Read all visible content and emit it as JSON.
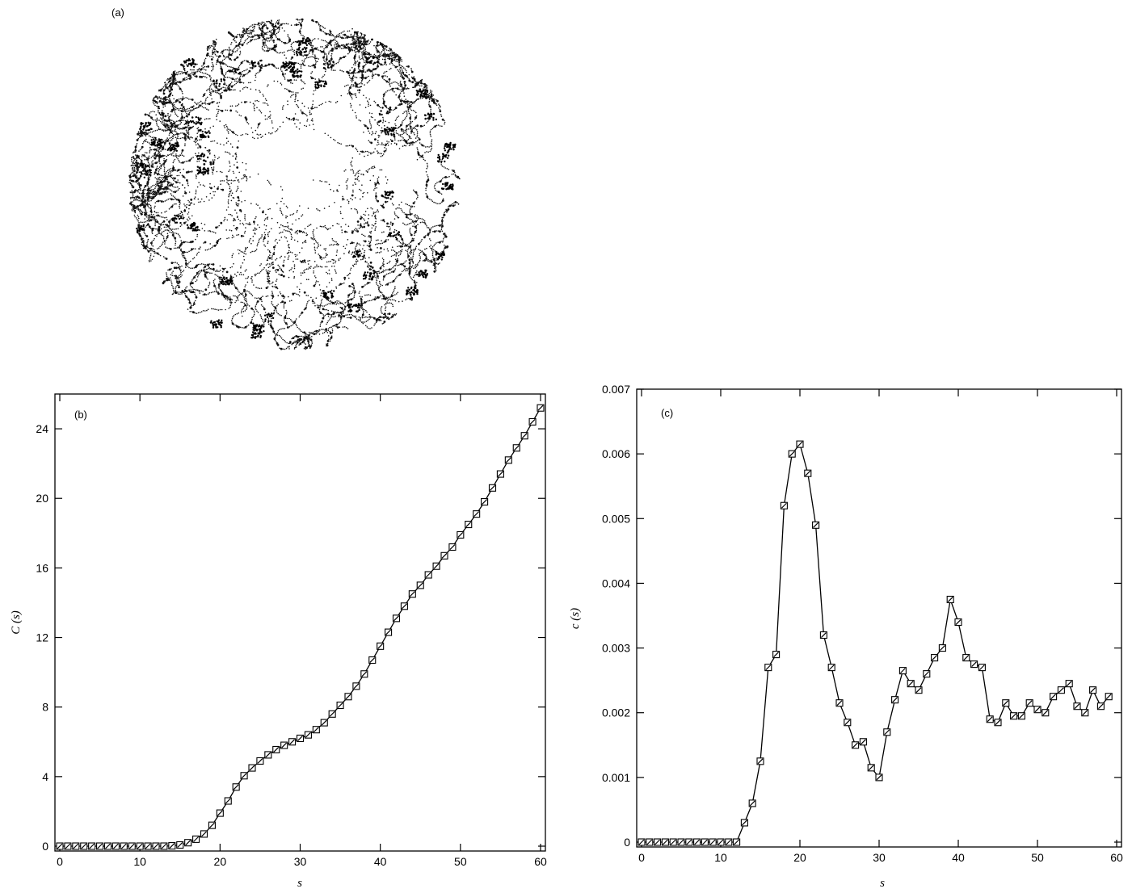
{
  "panel_a": {
    "label": "(a)"
  },
  "chart_data": [
    {
      "id": "b",
      "type": "line",
      "panel_label": "(b)",
      "xlabel": "s",
      "ylabel": "C (s)",
      "xlim": [
        0,
        60
      ],
      "ylim": [
        0,
        26
      ],
      "xticks": [
        0,
        10,
        20,
        30,
        40,
        50,
        60
      ],
      "yticks": [
        0,
        4,
        8,
        12,
        16,
        20,
        24
      ],
      "grid": false,
      "marker": "open-square",
      "x": [
        0,
        1,
        2,
        3,
        4,
        5,
        6,
        7,
        8,
        9,
        10,
        11,
        12,
        13,
        14,
        15,
        16,
        17,
        18,
        19,
        20,
        21,
        22,
        23,
        24,
        25,
        26,
        27,
        28,
        29,
        30,
        31,
        32,
        33,
        34,
        35,
        36,
        37,
        38,
        39,
        40,
        41,
        42,
        43,
        44,
        45,
        46,
        47,
        48,
        49,
        50,
        51,
        52,
        53,
        54,
        55,
        56,
        57,
        58,
        59,
        60
      ],
      "y": [
        0,
        0,
        0,
        0,
        0,
        0,
        0,
        0,
        0,
        0,
        0,
        0,
        0,
        0,
        0.02,
        0.07,
        0.2,
        0.4,
        0.7,
        1.2,
        1.9,
        2.6,
        3.4,
        4.05,
        4.5,
        4.9,
        5.25,
        5.55,
        5.8,
        6.0,
        6.2,
        6.4,
        6.7,
        7.1,
        7.6,
        8.1,
        8.6,
        9.2,
        9.9,
        10.7,
        11.5,
        12.3,
        13.1,
        13.8,
        14.5,
        15.0,
        15.6,
        16.1,
        16.7,
        17.2,
        17.9,
        18.5,
        19.1,
        19.8,
        20.6,
        21.4,
        22.2,
        22.9,
        23.6,
        24.4,
        25.2
      ]
    },
    {
      "id": "c",
      "type": "line",
      "panel_label": "(c)",
      "xlabel": "s",
      "ylabel": "c (s)",
      "xlim": [
        0,
        60
      ],
      "ylim": [
        0,
        0.007
      ],
      "xticks": [
        0,
        10,
        20,
        30,
        40,
        50,
        60
      ],
      "yticks": [
        0,
        0.001,
        0.002,
        0.003,
        0.004,
        0.005,
        0.006,
        0.007
      ],
      "yticklabels": [
        "0",
        "0.001",
        "0.002",
        "0.003",
        "0.004",
        "0.005",
        "0.006",
        "0.007"
      ],
      "grid": false,
      "marker": "open-square",
      "x": [
        0,
        1,
        2,
        3,
        4,
        5,
        6,
        7,
        8,
        9,
        10,
        11,
        12,
        13,
        14,
        15,
        16,
        17,
        18,
        19,
        20,
        21,
        22,
        23,
        24,
        25,
        26,
        27,
        28,
        29,
        30,
        31,
        32,
        33,
        34,
        35,
        36,
        37,
        38,
        39,
        40,
        41,
        42,
        43,
        44,
        45,
        46,
        47,
        48,
        49,
        50,
        51,
        52,
        53,
        54,
        55,
        56,
        57,
        58,
        59
      ],
      "y": [
        0,
        0,
        0,
        0,
        0,
        0,
        0,
        0,
        0,
        0,
        0,
        0,
        0,
        0.0003,
        0.0006,
        0.00125,
        0.0027,
        0.0029,
        0.0052,
        0.006,
        0.00615,
        0.0057,
        0.0049,
        0.0032,
        0.0027,
        0.00215,
        0.00185,
        0.0015,
        0.00155,
        0.00115,
        0.001,
        0.0017,
        0.0022,
        0.00265,
        0.00245,
        0.00235,
        0.0026,
        0.00285,
        0.003,
        0.00375,
        0.0034,
        0.00285,
        0.00275,
        0.0027,
        0.0019,
        0.00185,
        0.00215,
        0.00195,
        0.00195,
        0.00215,
        0.00205,
        0.002,
        0.00225,
        0.00235,
        0.00245,
        0.0021,
        0.002,
        0.00235,
        0.0021,
        0.00225
      ]
    }
  ]
}
